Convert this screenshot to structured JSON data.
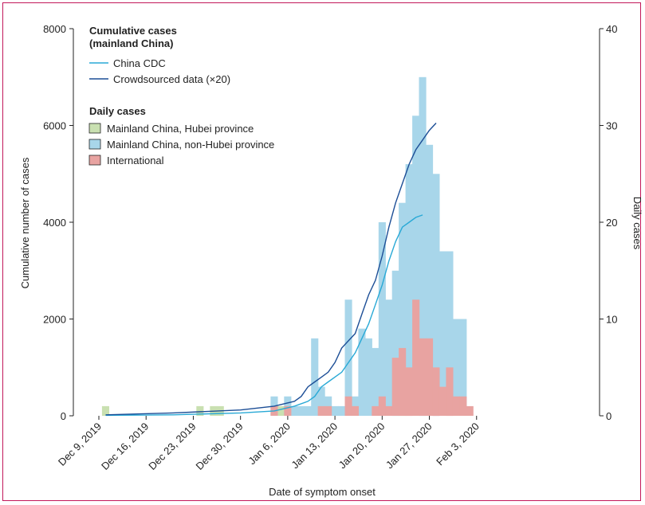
{
  "chart_data": {
    "type": "bar",
    "xlabel": "Date of symptom onset",
    "ylabel_left": "Cumulative number of cases",
    "ylabel_right": "Daily cases",
    "ylim_left": [
      0,
      8000
    ],
    "ylim_right": [
      0,
      40
    ],
    "yticks_left": [
      "0",
      "2000",
      "4000",
      "6000",
      "8000"
    ],
    "yticks_right": [
      "0",
      "10",
      "20",
      "30",
      "40"
    ],
    "date_axis_start": "2019-12-09",
    "x_ticks": [
      "Dec 9, 2019",
      "Dec 16, 2019",
      "Dec 23, 2019",
      "Dec 30, 2019",
      "Jan 6, 2020",
      "Jan 13, 2020",
      "Jan 20, 2020",
      "Jan 27, 2020",
      "Feb 3, 2020"
    ],
    "legend": {
      "cumulative_title": "Cumulative cases\n(mainland China)",
      "daily_title": "Daily cases",
      "position": "top-left"
    },
    "lines": [
      {
        "name": "China CDC",
        "color": "#29a9d6",
        "axis": "left",
        "points": [
          [
            "2019-12-10",
            10
          ],
          [
            "2019-12-20",
            20
          ],
          [
            "2019-12-30",
            60
          ],
          [
            "2020-01-04",
            100
          ],
          [
            "2020-01-07",
            200
          ],
          [
            "2020-01-09",
            300
          ],
          [
            "2020-01-10",
            400
          ],
          [
            "2020-01-11",
            600
          ],
          [
            "2020-01-12",
            700
          ],
          [
            "2020-01-14",
            900
          ],
          [
            "2020-01-16",
            1300
          ],
          [
            "2020-01-18",
            1900
          ],
          [
            "2020-01-19",
            2300
          ],
          [
            "2020-01-20",
            2700
          ],
          [
            "2020-01-21",
            3200
          ],
          [
            "2020-01-22",
            3600
          ],
          [
            "2020-01-23",
            3900
          ],
          [
            "2020-01-24",
            4000
          ],
          [
            "2020-01-25",
            4100
          ],
          [
            "2020-01-26",
            4150
          ]
        ]
      },
      {
        "name": "Crowdsourced data (×20)",
        "color": "#1c4e96",
        "axis": "left",
        "points": [
          [
            "2019-12-10",
            20
          ],
          [
            "2019-12-20",
            60
          ],
          [
            "2019-12-30",
            120
          ],
          [
            "2020-01-04",
            200
          ],
          [
            "2020-01-07",
            300
          ],
          [
            "2020-01-08",
            400
          ],
          [
            "2020-01-09",
            600
          ],
          [
            "2020-01-10",
            700
          ],
          [
            "2020-01-11",
            800
          ],
          [
            "2020-01-12",
            900
          ],
          [
            "2020-01-13",
            1100
          ],
          [
            "2020-01-14",
            1400
          ],
          [
            "2020-01-16",
            1700
          ],
          [
            "2020-01-17",
            2100
          ],
          [
            "2020-01-18",
            2500
          ],
          [
            "2020-01-19",
            2800
          ],
          [
            "2020-01-20",
            3300
          ],
          [
            "2020-01-21",
            3900
          ],
          [
            "2020-01-22",
            4400
          ],
          [
            "2020-01-23",
            4800
          ],
          [
            "2020-01-24",
            5200
          ],
          [
            "2020-01-25",
            5500
          ],
          [
            "2020-01-26",
            5700
          ],
          [
            "2020-01-27",
            5900
          ],
          [
            "2020-01-28",
            6050
          ]
        ]
      }
    ],
    "bar_series": [
      {
        "name": "Mainland China, Hubei province",
        "color": "#c9e0b1",
        "start": "2019-12-10",
        "values": [
          1,
          0,
          0,
          0,
          0,
          0,
          0,
          0,
          0,
          0,
          0,
          0,
          0,
          0,
          1,
          0,
          1,
          1,
          0,
          0,
          0,
          0,
          0,
          0,
          0,
          1,
          1,
          0,
          0,
          0,
          0,
          0,
          0,
          0,
          0,
          0,
          0,
          0,
          1,
          1,
          1,
          0,
          0,
          0,
          5,
          3,
          0,
          1,
          0,
          1,
          1,
          1
        ]
      },
      {
        "name": "Mainland China, non-Hubei province",
        "color": "#a8d6ea",
        "start": "2020-01-04",
        "values": [
          2,
          0,
          2,
          1,
          1,
          1,
          8,
          3,
          2,
          1,
          1,
          12,
          2,
          9,
          8,
          7,
          20,
          12,
          15,
          22,
          26,
          31,
          35,
          28,
          25,
          17,
          17,
          10,
          10,
          0
        ]
      },
      {
        "name": "International",
        "color": "#e8a3a1",
        "start": "2020-01-04",
        "values": [
          1,
          0,
          1,
          0,
          0,
          0,
          0,
          1,
          1,
          0,
          0,
          2,
          1,
          0,
          0,
          1,
          2,
          1,
          6,
          7,
          5,
          12,
          8,
          8,
          5,
          3,
          5,
          2,
          2,
          1
        ]
      }
    ]
  }
}
